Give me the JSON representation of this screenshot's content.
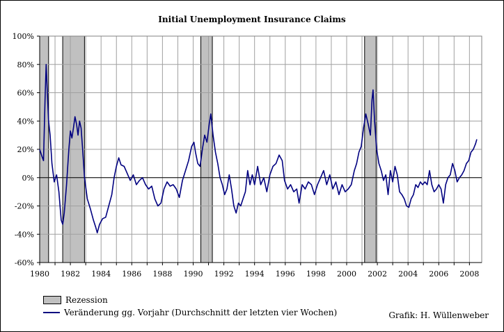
{
  "chart_data": {
    "type": "line",
    "title": "Initial Unemployment Insurance Claims",
    "xlabel": "",
    "ylabel": "",
    "xlim": [
      1980,
      2008.8
    ],
    "ylim": [
      -60,
      100
    ],
    "x_ticks": [
      1980,
      1982,
      1984,
      1986,
      1988,
      1990,
      1992,
      1994,
      1996,
      1998,
      2000,
      2002,
      2004,
      2006,
      2008
    ],
    "x_tick_labels": [
      "1980",
      "1982",
      "1984",
      "1986",
      "1988",
      "1990",
      "1992",
      "1994",
      "1996",
      "1998",
      "2000",
      "2002",
      "2004",
      "2006",
      "2008"
    ],
    "y_ticks": [
      -60,
      -40,
      -20,
      0,
      20,
      40,
      60,
      80,
      100
    ],
    "y_tick_labels": [
      "-60%",
      "-40%",
      "-20%",
      "0%",
      "20%",
      "40%",
      "60%",
      "80%",
      "100%"
    ],
    "grid": true,
    "legend_placement": "bottom-left",
    "recessions": [
      [
        1980.0,
        1980.58
      ],
      [
        1981.5,
        1982.92
      ],
      [
        1990.5,
        1991.25
      ],
      [
        2001.17,
        2001.92
      ]
    ],
    "series": [
      {
        "name": "Veränderung gg. Vorjahr (Durchschnitt der letzten vier Wochen)",
        "color": "#000080",
        "points": [
          [
            1980.0,
            20
          ],
          [
            1980.15,
            15
          ],
          [
            1980.25,
            12
          ],
          [
            1980.35,
            55
          ],
          [
            1980.42,
            80
          ],
          [
            1980.5,
            60
          ],
          [
            1980.58,
            40
          ],
          [
            1980.68,
            30
          ],
          [
            1980.8,
            10
          ],
          [
            1980.95,
            -3
          ],
          [
            1981.1,
            2
          ],
          [
            1981.25,
            -10
          ],
          [
            1981.4,
            -30
          ],
          [
            1981.5,
            -33
          ],
          [
            1981.6,
            -25
          ],
          [
            1981.75,
            -5
          ],
          [
            1981.9,
            20
          ],
          [
            1982.0,
            33
          ],
          [
            1982.1,
            28
          ],
          [
            1982.2,
            35
          ],
          [
            1982.3,
            43
          ],
          [
            1982.4,
            38
          ],
          [
            1982.5,
            30
          ],
          [
            1982.6,
            40
          ],
          [
            1982.7,
            35
          ],
          [
            1982.8,
            20
          ],
          [
            1982.92,
            0
          ],
          [
            1983.1,
            -15
          ],
          [
            1983.3,
            -22
          ],
          [
            1983.5,
            -30
          ],
          [
            1983.65,
            -35
          ],
          [
            1983.75,
            -39
          ],
          [
            1983.9,
            -33
          ],
          [
            1984.1,
            -29
          ],
          [
            1984.3,
            -28
          ],
          [
            1984.5,
            -20
          ],
          [
            1984.7,
            -12
          ],
          [
            1984.85,
            0
          ],
          [
            1985.0,
            8
          ],
          [
            1985.15,
            14
          ],
          [
            1985.3,
            9
          ],
          [
            1985.5,
            8
          ],
          [
            1985.7,
            3
          ],
          [
            1985.9,
            -2
          ],
          [
            1986.1,
            2
          ],
          [
            1986.3,
            -5
          ],
          [
            1986.5,
            -2
          ],
          [
            1986.7,
            0
          ],
          [
            1986.9,
            -5
          ],
          [
            1987.1,
            -8
          ],
          [
            1987.3,
            -6
          ],
          [
            1987.5,
            -15
          ],
          [
            1987.7,
            -20
          ],
          [
            1987.9,
            -18
          ],
          [
            1988.1,
            -8
          ],
          [
            1988.3,
            -3
          ],
          [
            1988.5,
            -6
          ],
          [
            1988.7,
            -5
          ],
          [
            1988.9,
            -8
          ],
          [
            1989.1,
            -14
          ],
          [
            1989.3,
            -2
          ],
          [
            1989.5,
            5
          ],
          [
            1989.7,
            12
          ],
          [
            1989.9,
            22
          ],
          [
            1990.05,
            25
          ],
          [
            1990.15,
            18
          ],
          [
            1990.3,
            10
          ],
          [
            1990.45,
            8
          ],
          [
            1990.6,
            20
          ],
          [
            1990.75,
            30
          ],
          [
            1990.9,
            25
          ],
          [
            1991.05,
            38
          ],
          [
            1991.15,
            45
          ],
          [
            1991.3,
            30
          ],
          [
            1991.45,
            18
          ],
          [
            1991.6,
            10
          ],
          [
            1991.75,
            0
          ],
          [
            1991.9,
            -5
          ],
          [
            1992.05,
            -12
          ],
          [
            1992.2,
            -8
          ],
          [
            1992.35,
            2
          ],
          [
            1992.5,
            -8
          ],
          [
            1992.65,
            -20
          ],
          [
            1992.8,
            -25
          ],
          [
            1992.95,
            -18
          ],
          [
            1993.1,
            -20
          ],
          [
            1993.25,
            -15
          ],
          [
            1993.4,
            -10
          ],
          [
            1993.55,
            5
          ],
          [
            1993.7,
            -5
          ],
          [
            1993.85,
            2
          ],
          [
            1994.0,
            -5
          ],
          [
            1994.2,
            8
          ],
          [
            1994.4,
            -5
          ],
          [
            1994.6,
            0
          ],
          [
            1994.8,
            -10
          ],
          [
            1995.0,
            2
          ],
          [
            1995.2,
            8
          ],
          [
            1995.4,
            10
          ],
          [
            1995.6,
            16
          ],
          [
            1995.8,
            12
          ],
          [
            1995.95,
            -2
          ],
          [
            1996.15,
            -8
          ],
          [
            1996.35,
            -5
          ],
          [
            1996.55,
            -10
          ],
          [
            1996.75,
            -8
          ],
          [
            1996.9,
            -18
          ],
          [
            1997.1,
            -5
          ],
          [
            1997.3,
            -8
          ],
          [
            1997.5,
            -3
          ],
          [
            1997.7,
            -5
          ],
          [
            1997.9,
            -12
          ],
          [
            1998.1,
            -5
          ],
          [
            1998.3,
            0
          ],
          [
            1998.5,
            5
          ],
          [
            1998.7,
            -5
          ],
          [
            1998.9,
            2
          ],
          [
            1999.1,
            -8
          ],
          [
            1999.3,
            -3
          ],
          [
            1999.5,
            -12
          ],
          [
            1999.7,
            -5
          ],
          [
            1999.9,
            -10
          ],
          [
            2000.1,
            -8
          ],
          [
            2000.3,
            -5
          ],
          [
            2000.5,
            5
          ],
          [
            2000.65,
            10
          ],
          [
            2000.8,
            18
          ],
          [
            2000.95,
            22
          ],
          [
            2001.1,
            35
          ],
          [
            2001.25,
            45
          ],
          [
            2001.4,
            38
          ],
          [
            2001.55,
            30
          ],
          [
            2001.65,
            55
          ],
          [
            2001.72,
            62
          ],
          [
            2001.82,
            40
          ],
          [
            2001.95,
            20
          ],
          [
            2002.1,
            10
          ],
          [
            2002.25,
            5
          ],
          [
            2002.4,
            -2
          ],
          [
            2002.55,
            2
          ],
          [
            2002.7,
            -12
          ],
          [
            2002.85,
            5
          ],
          [
            2003.0,
            -3
          ],
          [
            2003.15,
            8
          ],
          [
            2003.3,
            2
          ],
          [
            2003.45,
            -10
          ],
          [
            2003.6,
            -12
          ],
          [
            2003.75,
            -15
          ],
          [
            2003.9,
            -20
          ],
          [
            2004.05,
            -21
          ],
          [
            2004.2,
            -15
          ],
          [
            2004.35,
            -12
          ],
          [
            2004.5,
            -5
          ],
          [
            2004.65,
            -7
          ],
          [
            2004.8,
            -3
          ],
          [
            2004.95,
            -5
          ],
          [
            2005.1,
            -3
          ],
          [
            2005.25,
            -5
          ],
          [
            2005.4,
            5
          ],
          [
            2005.55,
            -5
          ],
          [
            2005.7,
            -10
          ],
          [
            2005.85,
            -8
          ],
          [
            2006.0,
            -5
          ],
          [
            2006.15,
            -8
          ],
          [
            2006.3,
            -18
          ],
          [
            2006.45,
            -5
          ],
          [
            2006.6,
            0
          ],
          [
            2006.75,
            2
          ],
          [
            2006.9,
            10
          ],
          [
            2007.05,
            5
          ],
          [
            2007.2,
            -3
          ],
          [
            2007.35,
            0
          ],
          [
            2007.5,
            2
          ],
          [
            2007.65,
            5
          ],
          [
            2007.8,
            10
          ],
          [
            2007.95,
            12
          ],
          [
            2008.1,
            18
          ],
          [
            2008.25,
            20
          ],
          [
            2008.4,
            24
          ],
          [
            2008.48,
            27
          ]
        ]
      }
    ]
  },
  "legend": {
    "recession_label": "Rezession",
    "line_label": "Veränderung gg. Vorjahr (Durchschnitt der letzten vier Wochen)"
  },
  "credit": "Grafik: H. Wüllenweber"
}
